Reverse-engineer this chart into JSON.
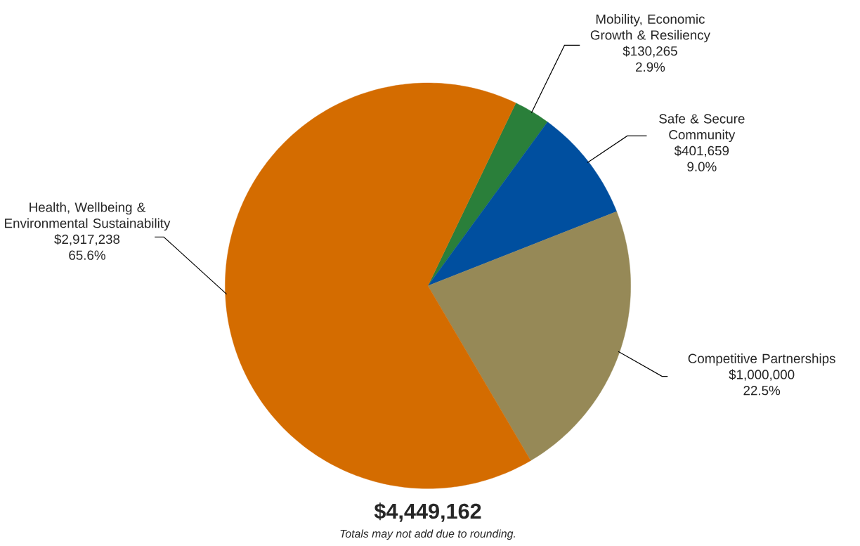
{
  "chart_data": {
    "type": "pie",
    "categories": [
      "Mobility, Economic Growth & Resiliency",
      "Safe & Secure Community",
      "Competitive Partnerships",
      "Health, Wellbeing & Environmental Sustainability"
    ],
    "values": [
      2.9,
      9.0,
      22.5,
      65.6
    ],
    "colors": [
      "#2a7f3a",
      "#004f9f",
      "#968957",
      "#d46c00"
    ],
    "value_labels": [
      [
        "$130,265",
        "2.9%"
      ],
      [
        "$401,659",
        "9.0%"
      ],
      [
        "$1,000,000",
        "22.5%"
      ],
      [
        "$2,917,238",
        "65.6%"
      ]
    ],
    "annotations": [
      "**$4,449,162**",
      "*Totals may not add due to rounding.*"
    ]
  }
}
